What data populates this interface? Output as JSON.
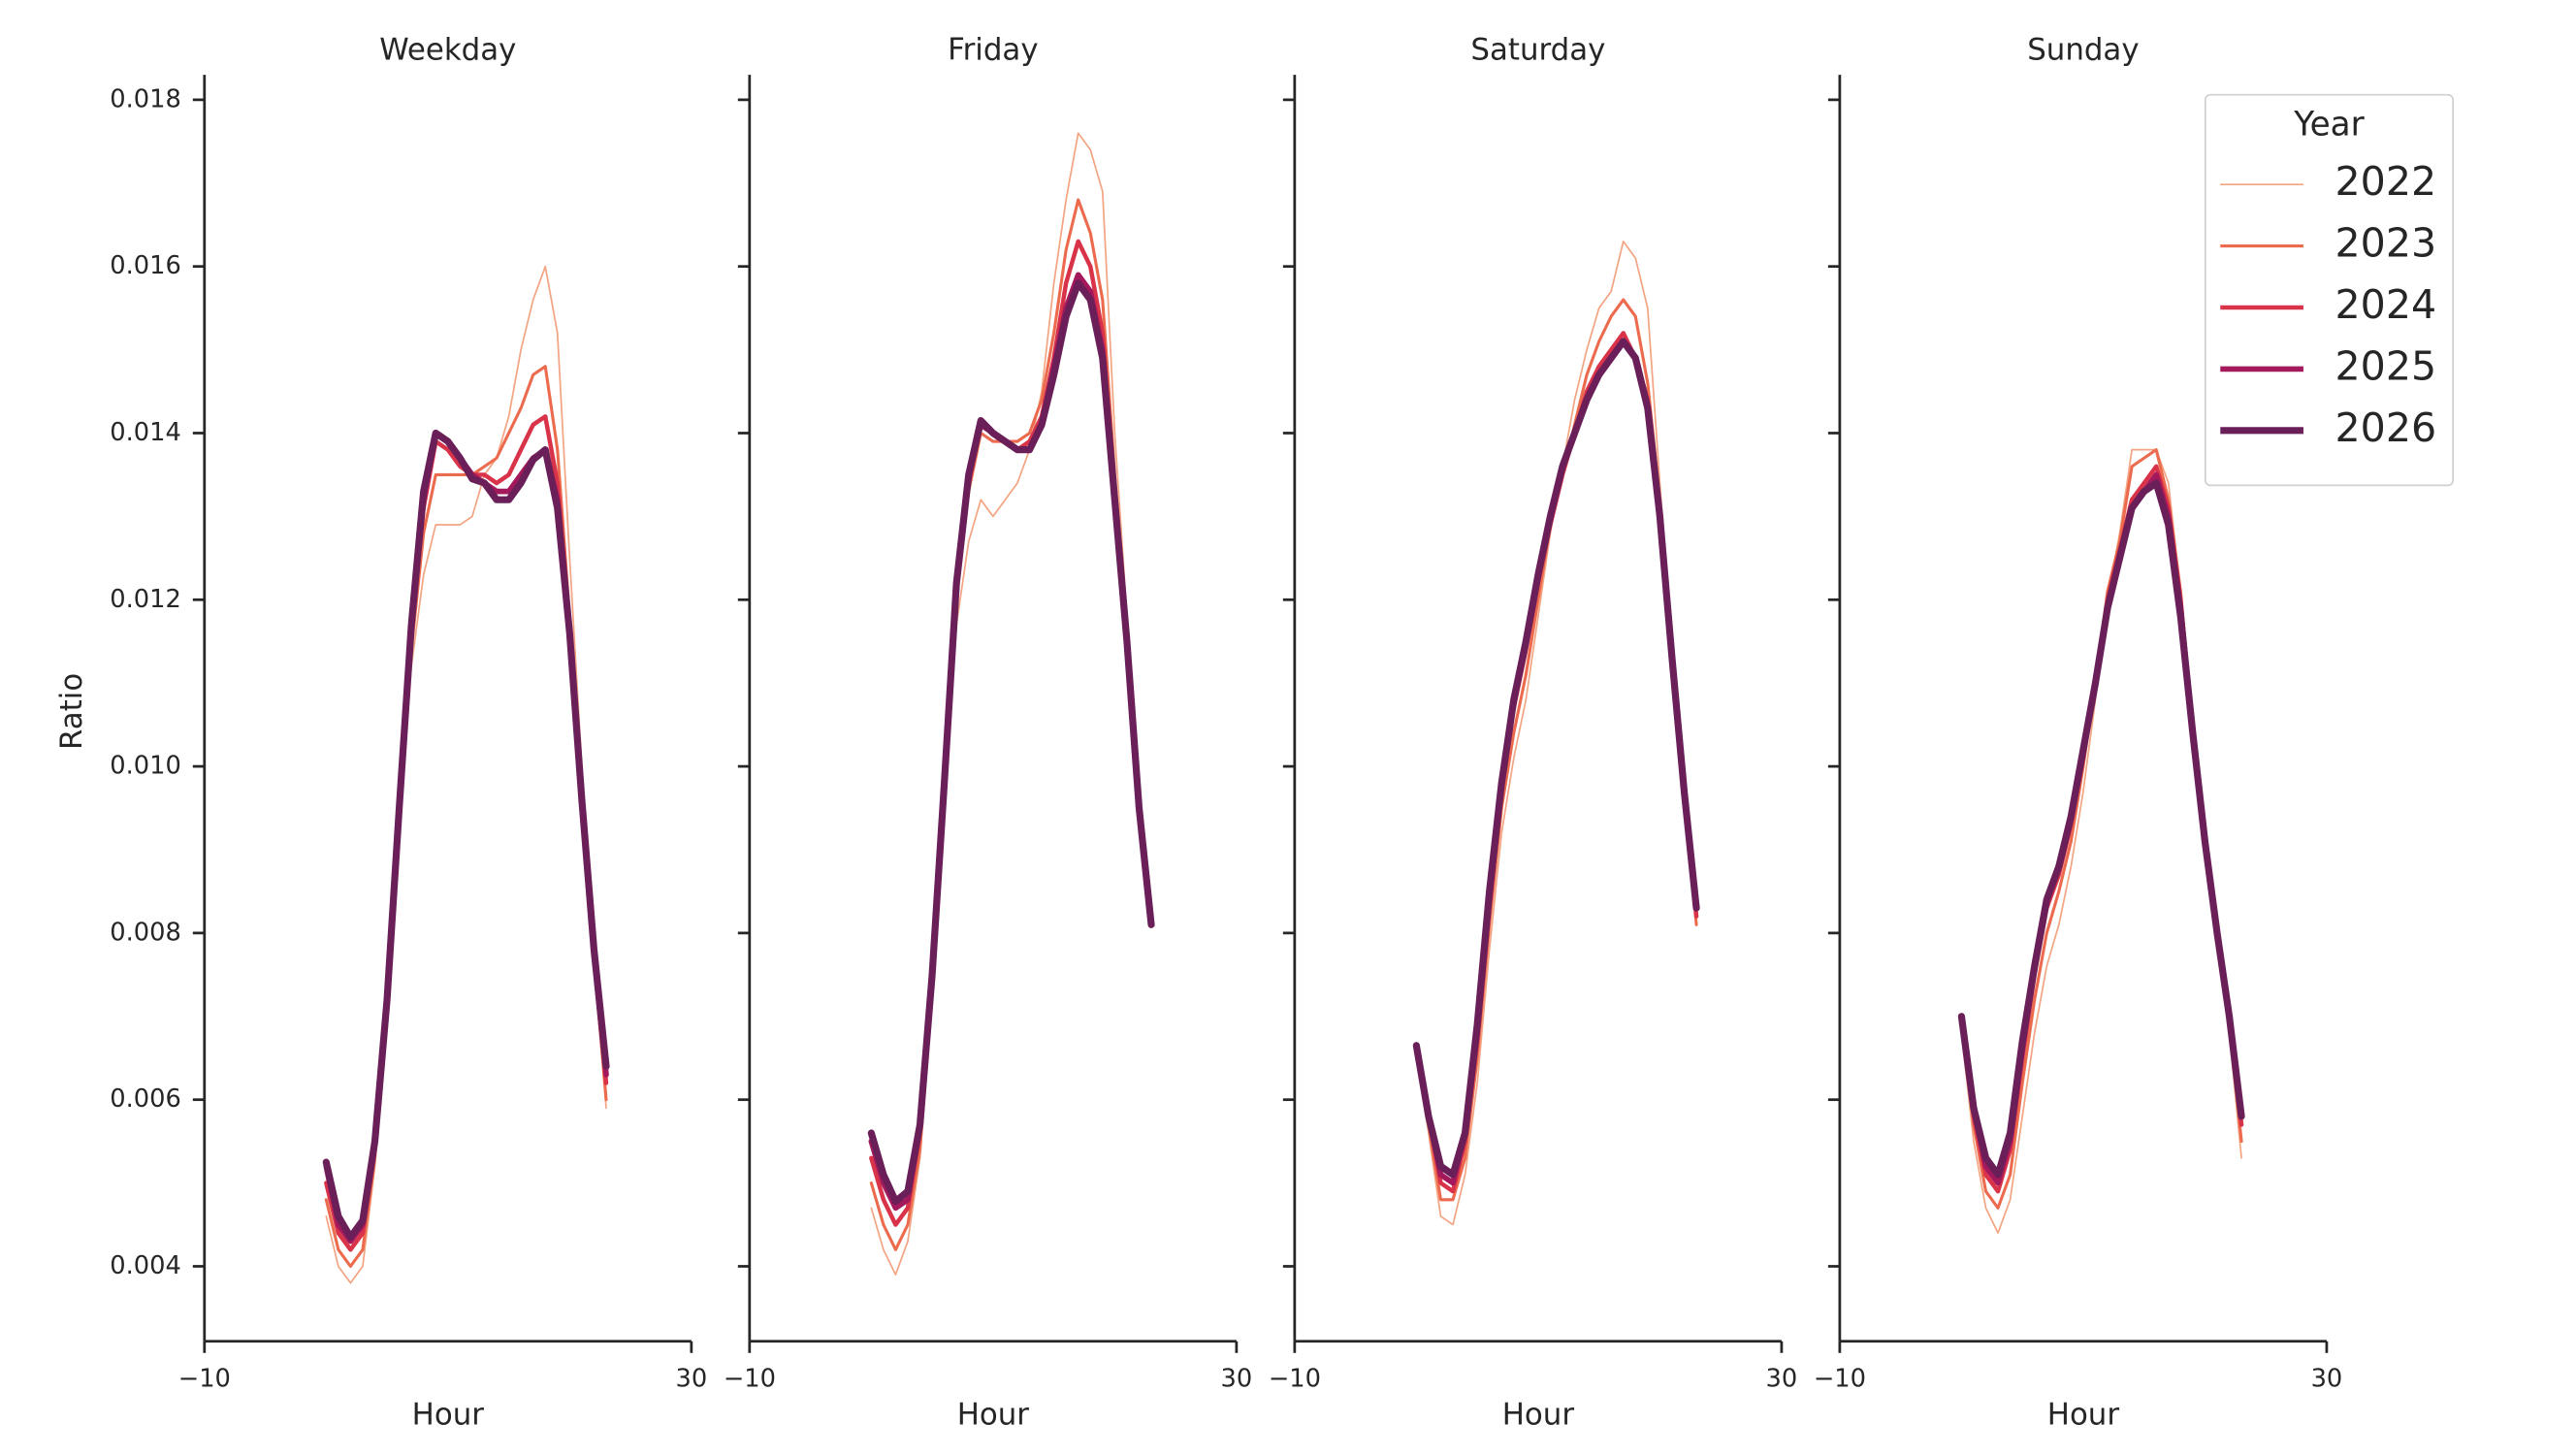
{
  "chart_data": [
    {
      "type": "line",
      "title": "Weekday",
      "xlabel": "Hour",
      "ylabel": "Ratio",
      "x": [
        0,
        1,
        2,
        3,
        4,
        5,
        6,
        7,
        8,
        9,
        10,
        11,
        12,
        13,
        14,
        15,
        16,
        17,
        18,
        19,
        20,
        21,
        22,
        23
      ],
      "xlim": [
        -10,
        30
      ],
      "xticks": [
        {
          "value": -10,
          "label": "−10"
        },
        30
      ],
      "ylim": [
        0.0031,
        0.0183
      ],
      "yticks": [
        0.004,
        0.006,
        0.008,
        {
          "value": 0.01,
          "label": "0.010"
        },
        0.012,
        0.014,
        0.016,
        0.018
      ],
      "series": [
        {
          "name": "2022",
          "color": "#f3a583",
          "values": [
            0.0046,
            0.004,
            0.0038,
            0.004,
            0.0052,
            0.007,
            0.0092,
            0.0112,
            0.0123,
            0.0129,
            0.0129,
            0.0129,
            0.013,
            0.0135,
            0.0137,
            0.0142,
            0.015,
            0.0156,
            0.016,
            0.0152,
            0.0125,
            0.01,
            0.0076,
            0.0059
          ]
        },
        {
          "name": "2023",
          "color": "#ec6a4d",
          "values": [
            0.0048,
            0.0042,
            0.004,
            0.0042,
            0.0053,
            0.0071,
            0.0094,
            0.0114,
            0.0128,
            0.0135,
            0.0135,
            0.0135,
            0.0135,
            0.0136,
            0.0137,
            0.014,
            0.0143,
            0.0147,
            0.0148,
            0.0138,
            0.0118,
            0.0097,
            0.0077,
            0.006
          ]
        },
        {
          "name": "2024",
          "color": "#d9334a",
          "values": [
            0.005,
            0.0044,
            0.0042,
            0.0044,
            0.0054,
            0.0072,
            0.0095,
            0.0116,
            0.0131,
            0.0139,
            0.0138,
            0.0136,
            0.0135,
            0.0135,
            0.0134,
            0.0135,
            0.0138,
            0.0141,
            0.0142,
            0.0134,
            0.0117,
            0.0096,
            0.0077,
            0.0062
          ]
        },
        {
          "name": "2025",
          "color": "#a4195c",
          "values": [
            0.0052,
            0.0045,
            0.0043,
            0.0045,
            0.0055,
            0.0072,
            0.0095,
            0.0117,
            0.0132,
            0.014,
            0.0139,
            0.0137,
            0.0135,
            0.0134,
            0.0133,
            0.0133,
            0.0135,
            0.0137,
            0.0138,
            0.0132,
            0.0116,
            0.0096,
            0.0078,
            0.0063
          ]
        },
        {
          "name": "2026",
          "color": "#6a1f58",
          "values": [
            0.00525,
            0.0046,
            0.00435,
            0.00455,
            0.0055,
            0.0072,
            0.0095,
            0.0117,
            0.0133,
            0.014,
            0.0139,
            0.0137,
            0.01345,
            0.0134,
            0.0132,
            0.0132,
            0.0134,
            0.01368,
            0.0138,
            0.0131,
            0.0116,
            0.0096,
            0.0078,
            0.0064
          ]
        }
      ]
    },
    {
      "type": "line",
      "title": "Friday",
      "xlabel": "Hour",
      "x": [
        0,
        1,
        2,
        3,
        4,
        5,
        6,
        7,
        8,
        9,
        10,
        11,
        12,
        13,
        14,
        15,
        16,
        17,
        18,
        19,
        20,
        21,
        22,
        23
      ],
      "xlim": [
        -10,
        30
      ],
      "xticks": [
        {
          "value": -10,
          "label": "−10"
        },
        30
      ],
      "series": [
        {
          "name": "2022",
          "color": "#f3a583",
          "values": [
            0.0047,
            0.0042,
            0.0039,
            0.0043,
            0.0053,
            0.0072,
            0.0095,
            0.0117,
            0.0127,
            0.0132,
            0.013,
            0.0132,
            0.0134,
            0.0138,
            0.0145,
            0.0158,
            0.0168,
            0.0176,
            0.0174,
            0.0169,
            0.014,
            0.0118,
            0.0096,
            0.0081
          ]
        },
        {
          "name": "2023",
          "color": "#ec6a4d",
          "values": [
            0.005,
            0.0045,
            0.0042,
            0.0045,
            0.0054,
            0.0073,
            0.0096,
            0.012,
            0.0133,
            0.014,
            0.0139,
            0.0139,
            0.0139,
            0.014,
            0.0144,
            0.0152,
            0.0162,
            0.0168,
            0.0164,
            0.0156,
            0.0135,
            0.0116,
            0.0095,
            0.0081
          ]
        },
        {
          "name": "2024",
          "color": "#d9334a",
          "values": [
            0.0053,
            0.0048,
            0.0045,
            0.0047,
            0.0056,
            0.0074,
            0.0097,
            0.0121,
            0.0134,
            0.0141,
            0.014,
            0.0139,
            0.0138,
            0.0139,
            0.0142,
            0.0149,
            0.0158,
            0.0163,
            0.016,
            0.0152,
            0.0133,
            0.0115,
            0.0095,
            0.0081
          ]
        },
        {
          "name": "2025",
          "color": "#a4195c",
          "values": [
            0.0055,
            0.005,
            0.0047,
            0.0048,
            0.0057,
            0.0075,
            0.0098,
            0.0122,
            0.0135,
            0.0141,
            0.014,
            0.0139,
            0.0138,
            0.0138,
            0.0141,
            0.0148,
            0.0155,
            0.0159,
            0.0157,
            0.015,
            0.0132,
            0.0115,
            0.0095,
            0.0081
          ]
        },
        {
          "name": "2026",
          "color": "#6a1f58",
          "values": [
            0.0056,
            0.0051,
            0.00478,
            0.0049,
            0.0057,
            0.0075,
            0.0098,
            0.0122,
            0.0135,
            0.01415,
            0.014,
            0.0139,
            0.0138,
            0.0138,
            0.0141,
            0.0147,
            0.0154,
            0.0158,
            0.0156,
            0.0149,
            0.0132,
            0.0115,
            0.0095,
            0.0081
          ]
        }
      ]
    },
    {
      "type": "line",
      "title": "Saturday",
      "xlabel": "Hour",
      "x": [
        0,
        1,
        2,
        3,
        4,
        5,
        6,
        7,
        8,
        9,
        10,
        11,
        12,
        13,
        14,
        15,
        16,
        17,
        18,
        19,
        20,
        21,
        22,
        23
      ],
      "xlim": [
        -10,
        30
      ],
      "xticks": [
        {
          "value": -10,
          "label": "−10"
        },
        30
      ],
      "series": [
        {
          "name": "2022",
          "color": "#f3a583",
          "values": [
            0.0065,
            0.0056,
            0.0046,
            0.0045,
            0.0051,
            0.0062,
            0.0078,
            0.0092,
            0.0101,
            0.0108,
            0.0118,
            0.0128,
            0.0136,
            0.0144,
            0.015,
            0.0155,
            0.0157,
            0.0163,
            0.0161,
            0.0155,
            0.0134,
            0.0115,
            0.0098,
            0.0081
          ]
        },
        {
          "name": "2023",
          "color": "#ec6a4d",
          "values": [
            0.0066,
            0.0057,
            0.0048,
            0.0048,
            0.0053,
            0.0065,
            0.0081,
            0.0095,
            0.0104,
            0.0111,
            0.012,
            0.0129,
            0.0135,
            0.0141,
            0.0147,
            0.0151,
            0.0154,
            0.0156,
            0.0154,
            0.0146,
            0.0132,
            0.0114,
            0.0097,
            0.0081
          ]
        },
        {
          "name": "2024",
          "color": "#d9334a",
          "values": [
            0.0066,
            0.0058,
            0.005,
            0.0049,
            0.0055,
            0.0067,
            0.0083,
            0.0097,
            0.0107,
            0.0114,
            0.0122,
            0.0129,
            0.0135,
            0.014,
            0.0145,
            0.0148,
            0.015,
            0.0152,
            0.0149,
            0.0144,
            0.013,
            0.0113,
            0.0097,
            0.0082
          ]
        },
        {
          "name": "2025",
          "color": "#a4195c",
          "values": [
            0.0066,
            0.0058,
            0.0051,
            0.005,
            0.0056,
            0.0068,
            0.0084,
            0.0098,
            0.0108,
            0.0115,
            0.0123,
            0.013,
            0.0136,
            0.014,
            0.0144,
            0.0147,
            0.0149,
            0.0151,
            0.0149,
            0.0143,
            0.013,
            0.0113,
            0.0097,
            0.0083
          ]
        },
        {
          "name": "2026",
          "color": "#6a1f58",
          "values": [
            0.00665,
            0.0058,
            0.0052,
            0.0051,
            0.0056,
            0.0069,
            0.0085,
            0.0098,
            0.0108,
            0.0115,
            0.0123,
            0.013,
            0.0136,
            0.014,
            0.0144,
            0.0147,
            0.0149,
            0.0151,
            0.0149,
            0.0143,
            0.013,
            0.0113,
            0.0097,
            0.0083
          ]
        }
      ]
    },
    {
      "type": "line",
      "title": "Sunday",
      "xlabel": "Hour",
      "legend_title": "Year",
      "legend": "upper right",
      "x": [
        0,
        1,
        2,
        3,
        4,
        5,
        6,
        7,
        8,
        9,
        10,
        11,
        12,
        13,
        14,
        15,
        16,
        17,
        18,
        19,
        20,
        21,
        22,
        23
      ],
      "xlim": [
        -10,
        30
      ],
      "xticks": [
        {
          "value": -10,
          "label": "−10"
        },
        30
      ],
      "series": [
        {
          "name": "2022",
          "color": "#f3a583",
          "values": [
            0.0068,
            0.0055,
            0.0047,
            0.0044,
            0.0048,
            0.0058,
            0.0068,
            0.0076,
            0.0081,
            0.0088,
            0.0097,
            0.0108,
            0.012,
            0.0128,
            0.0138,
            0.0138,
            0.0138,
            0.0134,
            0.0121,
            0.0105,
            0.0091,
            0.008,
            0.0068,
            0.0053
          ]
        },
        {
          "name": "2023",
          "color": "#ec6a4d",
          "values": [
            0.0069,
            0.0057,
            0.0049,
            0.0047,
            0.0051,
            0.0062,
            0.0072,
            0.008,
            0.0085,
            0.0091,
            0.01,
            0.011,
            0.0121,
            0.0127,
            0.0136,
            0.0137,
            0.0138,
            0.0132,
            0.0121,
            0.0105,
            0.0091,
            0.008,
            0.0069,
            0.0055
          ]
        },
        {
          "name": "2024",
          "color": "#d9334a",
          "values": [
            0.007,
            0.0058,
            0.0051,
            0.0049,
            0.0054,
            0.0065,
            0.0075,
            0.0083,
            0.0087,
            0.0093,
            0.0101,
            0.011,
            0.012,
            0.0126,
            0.0132,
            0.0134,
            0.0136,
            0.0131,
            0.012,
            0.0104,
            0.0091,
            0.008,
            0.007,
            0.0057
          ]
        },
        {
          "name": "2025",
          "color": "#a4195c",
          "values": [
            0.007,
            0.0059,
            0.0052,
            0.005,
            0.0055,
            0.0066,
            0.0076,
            0.0084,
            0.0088,
            0.0094,
            0.0102,
            0.011,
            0.0119,
            0.0125,
            0.0131,
            0.0133,
            0.0135,
            0.013,
            0.0119,
            0.0104,
            0.0091,
            0.008,
            0.007,
            0.0058
          ]
        },
        {
          "name": "2026",
          "color": "#6a1f58",
          "values": [
            0.007,
            0.0059,
            0.0053,
            0.0051,
            0.0056,
            0.0067,
            0.0076,
            0.0084,
            0.0088,
            0.0094,
            0.0102,
            0.011,
            0.0119,
            0.0125,
            0.0131,
            0.0133,
            0.0134,
            0.0129,
            0.0118,
            0.0104,
            0.0091,
            0.008,
            0.007,
            0.0058
          ]
        }
      ]
    }
  ]
}
